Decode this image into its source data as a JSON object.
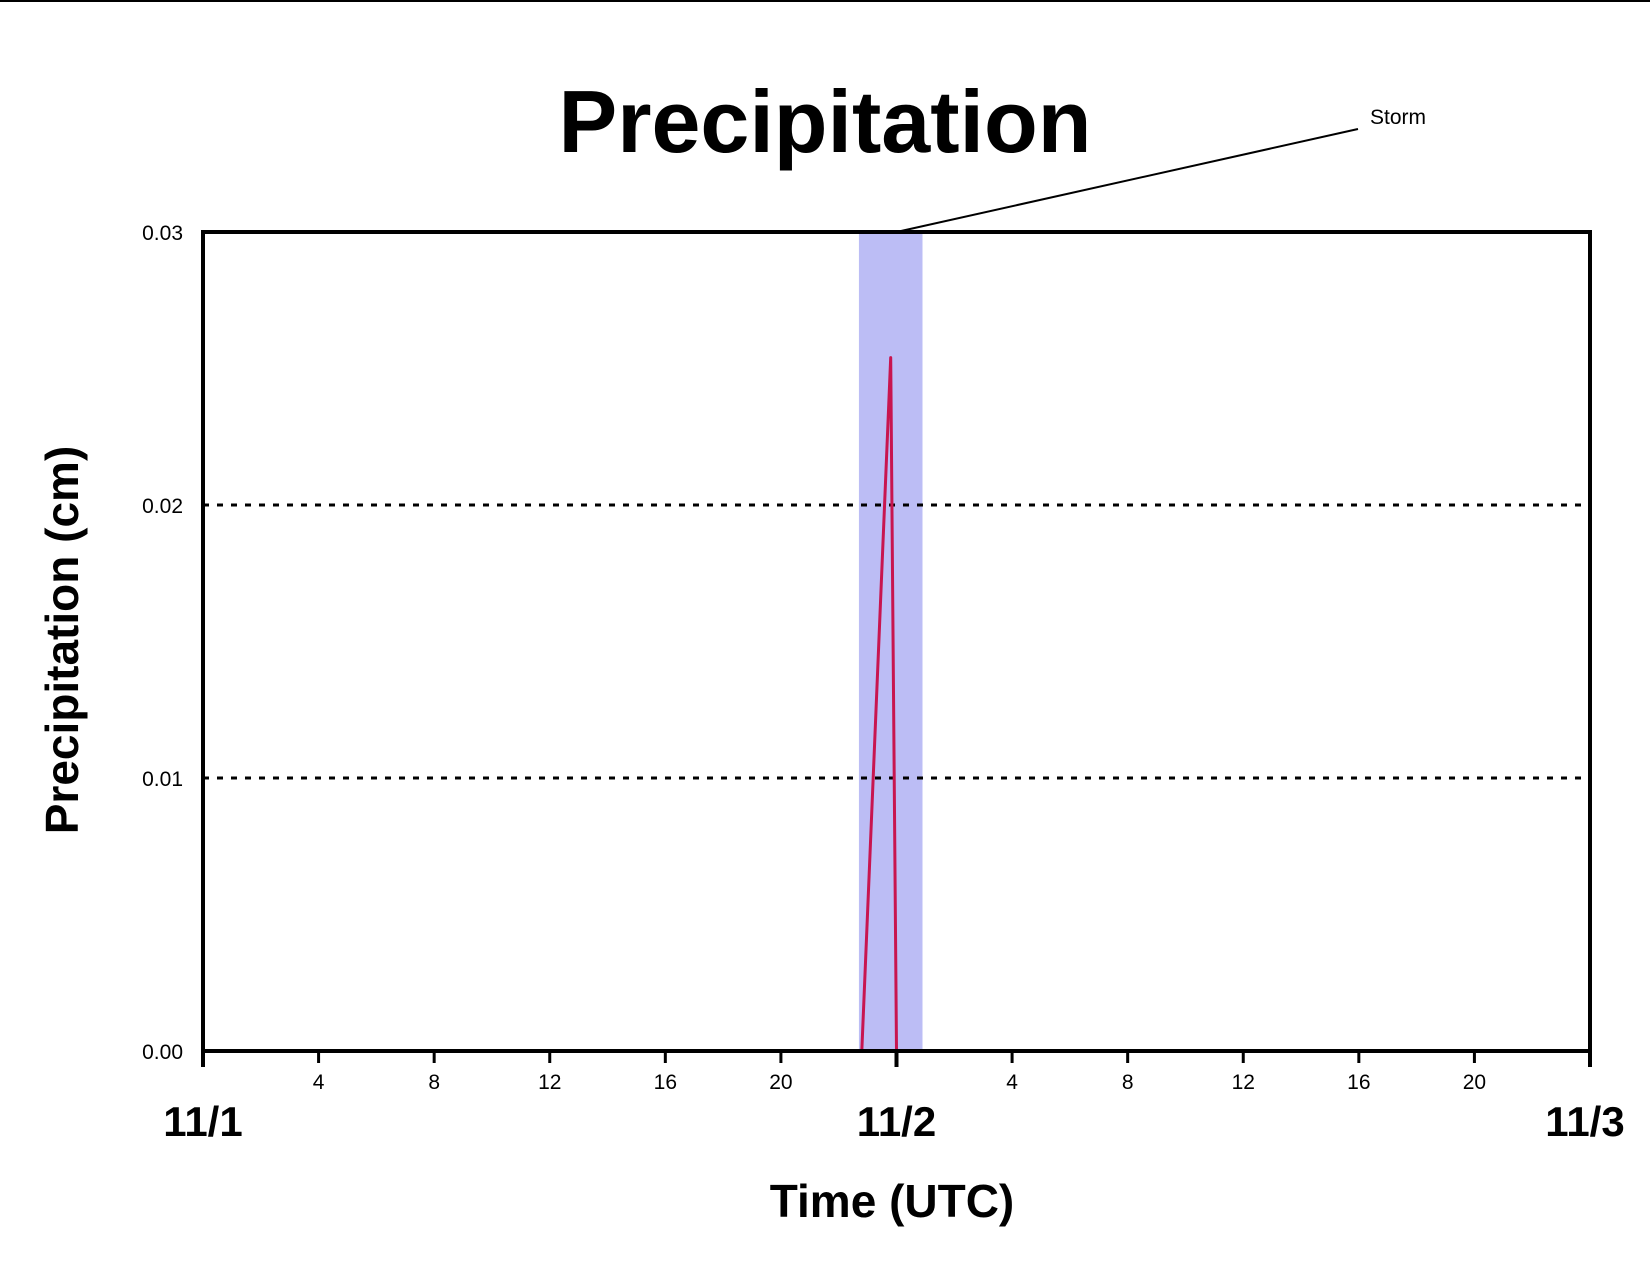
{
  "chart_data": {
    "type": "line",
    "title": "Precipitation",
    "xlabel": "Time (UTC)",
    "ylabel": "Precipitation (cm)",
    "x_unit": "hours from 11/1 00 UTC",
    "xlim": [
      0,
      48
    ],
    "ylim": [
      0,
      0.03
    ],
    "yticks": [
      {
        "value": 0.0,
        "label": "0.00"
      },
      {
        "value": 0.01,
        "label": "0.01"
      },
      {
        "value": 0.02,
        "label": "0.02"
      },
      {
        "value": 0.03,
        "label": "0.03"
      }
    ],
    "hour_ticks": [
      {
        "value": 4,
        "label": "4"
      },
      {
        "value": 8,
        "label": "8"
      },
      {
        "value": 12,
        "label": "12"
      },
      {
        "value": 16,
        "label": "16"
      },
      {
        "value": 20,
        "label": "20"
      },
      {
        "value": 28,
        "label": "4"
      },
      {
        "value": 32,
        "label": "8"
      },
      {
        "value": 36,
        "label": "12"
      },
      {
        "value": 40,
        "label": "16"
      },
      {
        "value": 44,
        "label": "20"
      }
    ],
    "day_ticks": [
      {
        "value": 0,
        "label": "11/1"
      },
      {
        "value": 24,
        "label": "11/2"
      },
      {
        "value": 48,
        "label": "11/3"
      }
    ],
    "grid": {
      "y": true,
      "style": "dotted",
      "x": false
    },
    "series": [
      {
        "color": "#c8154f",
        "points": [
          {
            "x": 0,
            "y": 0
          },
          {
            "x": 22.8,
            "y": 0
          },
          {
            "x": 23.8,
            "y": 0.0254
          },
          {
            "x": 24.0,
            "y": 0
          },
          {
            "x": 48,
            "y": 0
          }
        ]
      }
    ],
    "shaded_region": {
      "x_start": 22.7,
      "x_end": 24.9,
      "color": "#bcbdf5"
    },
    "annotation": {
      "text": "Storm",
      "x": 24.0,
      "y": 0.03
    }
  }
}
